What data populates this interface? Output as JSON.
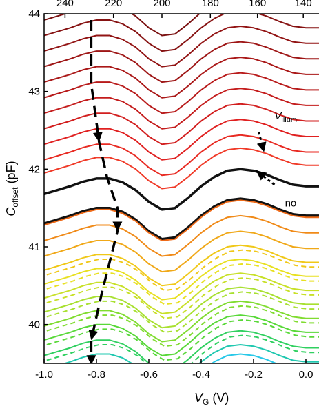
{
  "chart_data": {
    "type": "line",
    "title": "",
    "x_axis": {
      "label_main": "V",
      "label_sub": "G",
      "label_unit": " (V)",
      "range": [
        -1.0,
        0.05
      ],
      "ticks": [
        -1.0,
        -0.8,
        -0.6,
        -0.4,
        -0.2,
        0.0
      ],
      "tick_labels": [
        "-1.0",
        "-0.8",
        "-0.6",
        "-0.4",
        "-0.2",
        "0.0"
      ]
    },
    "y_axis": {
      "label_main": "C",
      "label_sub": "offset",
      "label_unit": " (pF)",
      "range": [
        39.5,
        44.0
      ],
      "ticks": [
        40,
        41,
        42,
        43,
        44
      ],
      "tick_labels": [
        "40",
        "41",
        "42",
        "43",
        "44"
      ]
    },
    "top_axis": {
      "ticks": [
        240,
        220,
        200,
        180,
        160,
        140
      ],
      "tick_labels": [
        "240",
        "220",
        "200",
        "180",
        "160",
        "140"
      ],
      "positions_vg": [
        -0.92,
        -0.735,
        -0.55,
        -0.365,
        -0.185,
        -0.01
      ]
    },
    "annotations": [
      {
        "text_main": "V",
        "text_sub": "illum",
        "vg": -0.12,
        "c": 42.64
      },
      {
        "text_main": "no",
        "text_sub": "",
        "vg": -0.08,
        "c": 41.52
      }
    ],
    "curve_shape": {
      "vg": [
        -1.0,
        -0.95,
        -0.9,
        -0.85,
        -0.8,
        -0.75,
        -0.7,
        -0.65,
        -0.6,
        -0.55,
        -0.5,
        -0.45,
        -0.4,
        -0.35,
        -0.3,
        -0.25,
        -0.2,
        -0.15,
        -0.1,
        -0.05,
        0.0,
        0.05
      ],
      "delta_c": [
        0.0,
        0.05,
        0.1,
        0.16,
        0.2,
        0.2,
        0.15,
        0.05,
        -0.1,
        -0.2,
        -0.18,
        -0.05,
        0.1,
        0.22,
        0.3,
        0.32,
        0.3,
        0.25,
        0.18,
        0.12,
        0.1,
        0.1
      ]
    },
    "series": [
      {
        "offset": 43.92,
        "color": "#7a1010",
        "dashed_copy": false
      },
      {
        "offset": 43.72,
        "color": "#861212",
        "dashed_copy": false
      },
      {
        "offset": 43.52,
        "color": "#921414",
        "dashed_copy": false
      },
      {
        "offset": 43.32,
        "color": "#9e1616",
        "dashed_copy": false
      },
      {
        "offset": 43.12,
        "color": "#aa1818",
        "dashed_copy": false
      },
      {
        "offset": 42.92,
        "color": "#b81a1a",
        "dashed_copy": false
      },
      {
        "offset": 42.72,
        "color": "#c41c1c",
        "dashed_copy": false
      },
      {
        "offset": 42.52,
        "color": "#d21e1e",
        "dashed_copy": false
      },
      {
        "offset": 42.32,
        "color": "#e02020",
        "dashed_copy": false
      },
      {
        "offset": 42.12,
        "color": "#e82a22",
        "dashed_copy": false
      },
      {
        "offset": 41.95,
        "color": "#f03a28",
        "dashed_copy": false
      },
      {
        "offset": 41.68,
        "color": "#111111",
        "dashed_copy": false,
        "bold": true
      },
      {
        "offset": 41.3,
        "color": "#111111",
        "dashed_copy": false,
        "bold": true
      },
      {
        "offset": 41.28,
        "color": "#ee6a18",
        "dashed_copy": false
      },
      {
        "offset": 41.08,
        "color": "#f08a18",
        "dashed_copy": false
      },
      {
        "offset": 40.88,
        "color": "#f0a818",
        "dashed_copy": false
      },
      {
        "offset": 40.7,
        "color": "#f0c818",
        "dashed_copy": true
      },
      {
        "offset": 40.52,
        "color": "#e8e020",
        "dashed_copy": true
      },
      {
        "offset": 40.34,
        "color": "#c8e028",
        "dashed_copy": true
      },
      {
        "offset": 40.16,
        "color": "#a8e030",
        "dashed_copy": true
      },
      {
        "offset": 39.98,
        "color": "#80dc30",
        "dashed_copy": true
      },
      {
        "offset": 39.8,
        "color": "#58d838",
        "dashed_copy": true
      },
      {
        "offset": 39.6,
        "color": "#30d060",
        "dashed_copy": true
      },
      {
        "offset": 39.42,
        "color": "#20c8b0",
        "dashed_copy": false
      },
      {
        "offset": 39.3,
        "color": "#28c8e8",
        "dashed_copy": false
      }
    ],
    "arrows": [
      {
        "points_vg": [
          -0.82,
          -0.82,
          -0.79,
          -0.76,
          -0.72,
          -0.72,
          -0.78,
          -0.82,
          -0.82
        ],
        "points_c": [
          43.92,
          43.1,
          42.35,
          41.9,
          41.5,
          41.2,
          40.4,
          39.8,
          39.48
        ]
      },
      {
        "from_vg": -0.18,
        "from_c": 42.48,
        "to_vg": -0.16,
        "to_c": 42.22
      },
      {
        "from_vg": -0.12,
        "from_c": 41.8,
        "to_vg": -0.19,
        "to_c": 41.98
      }
    ],
    "grid": false,
    "legend": "none"
  }
}
